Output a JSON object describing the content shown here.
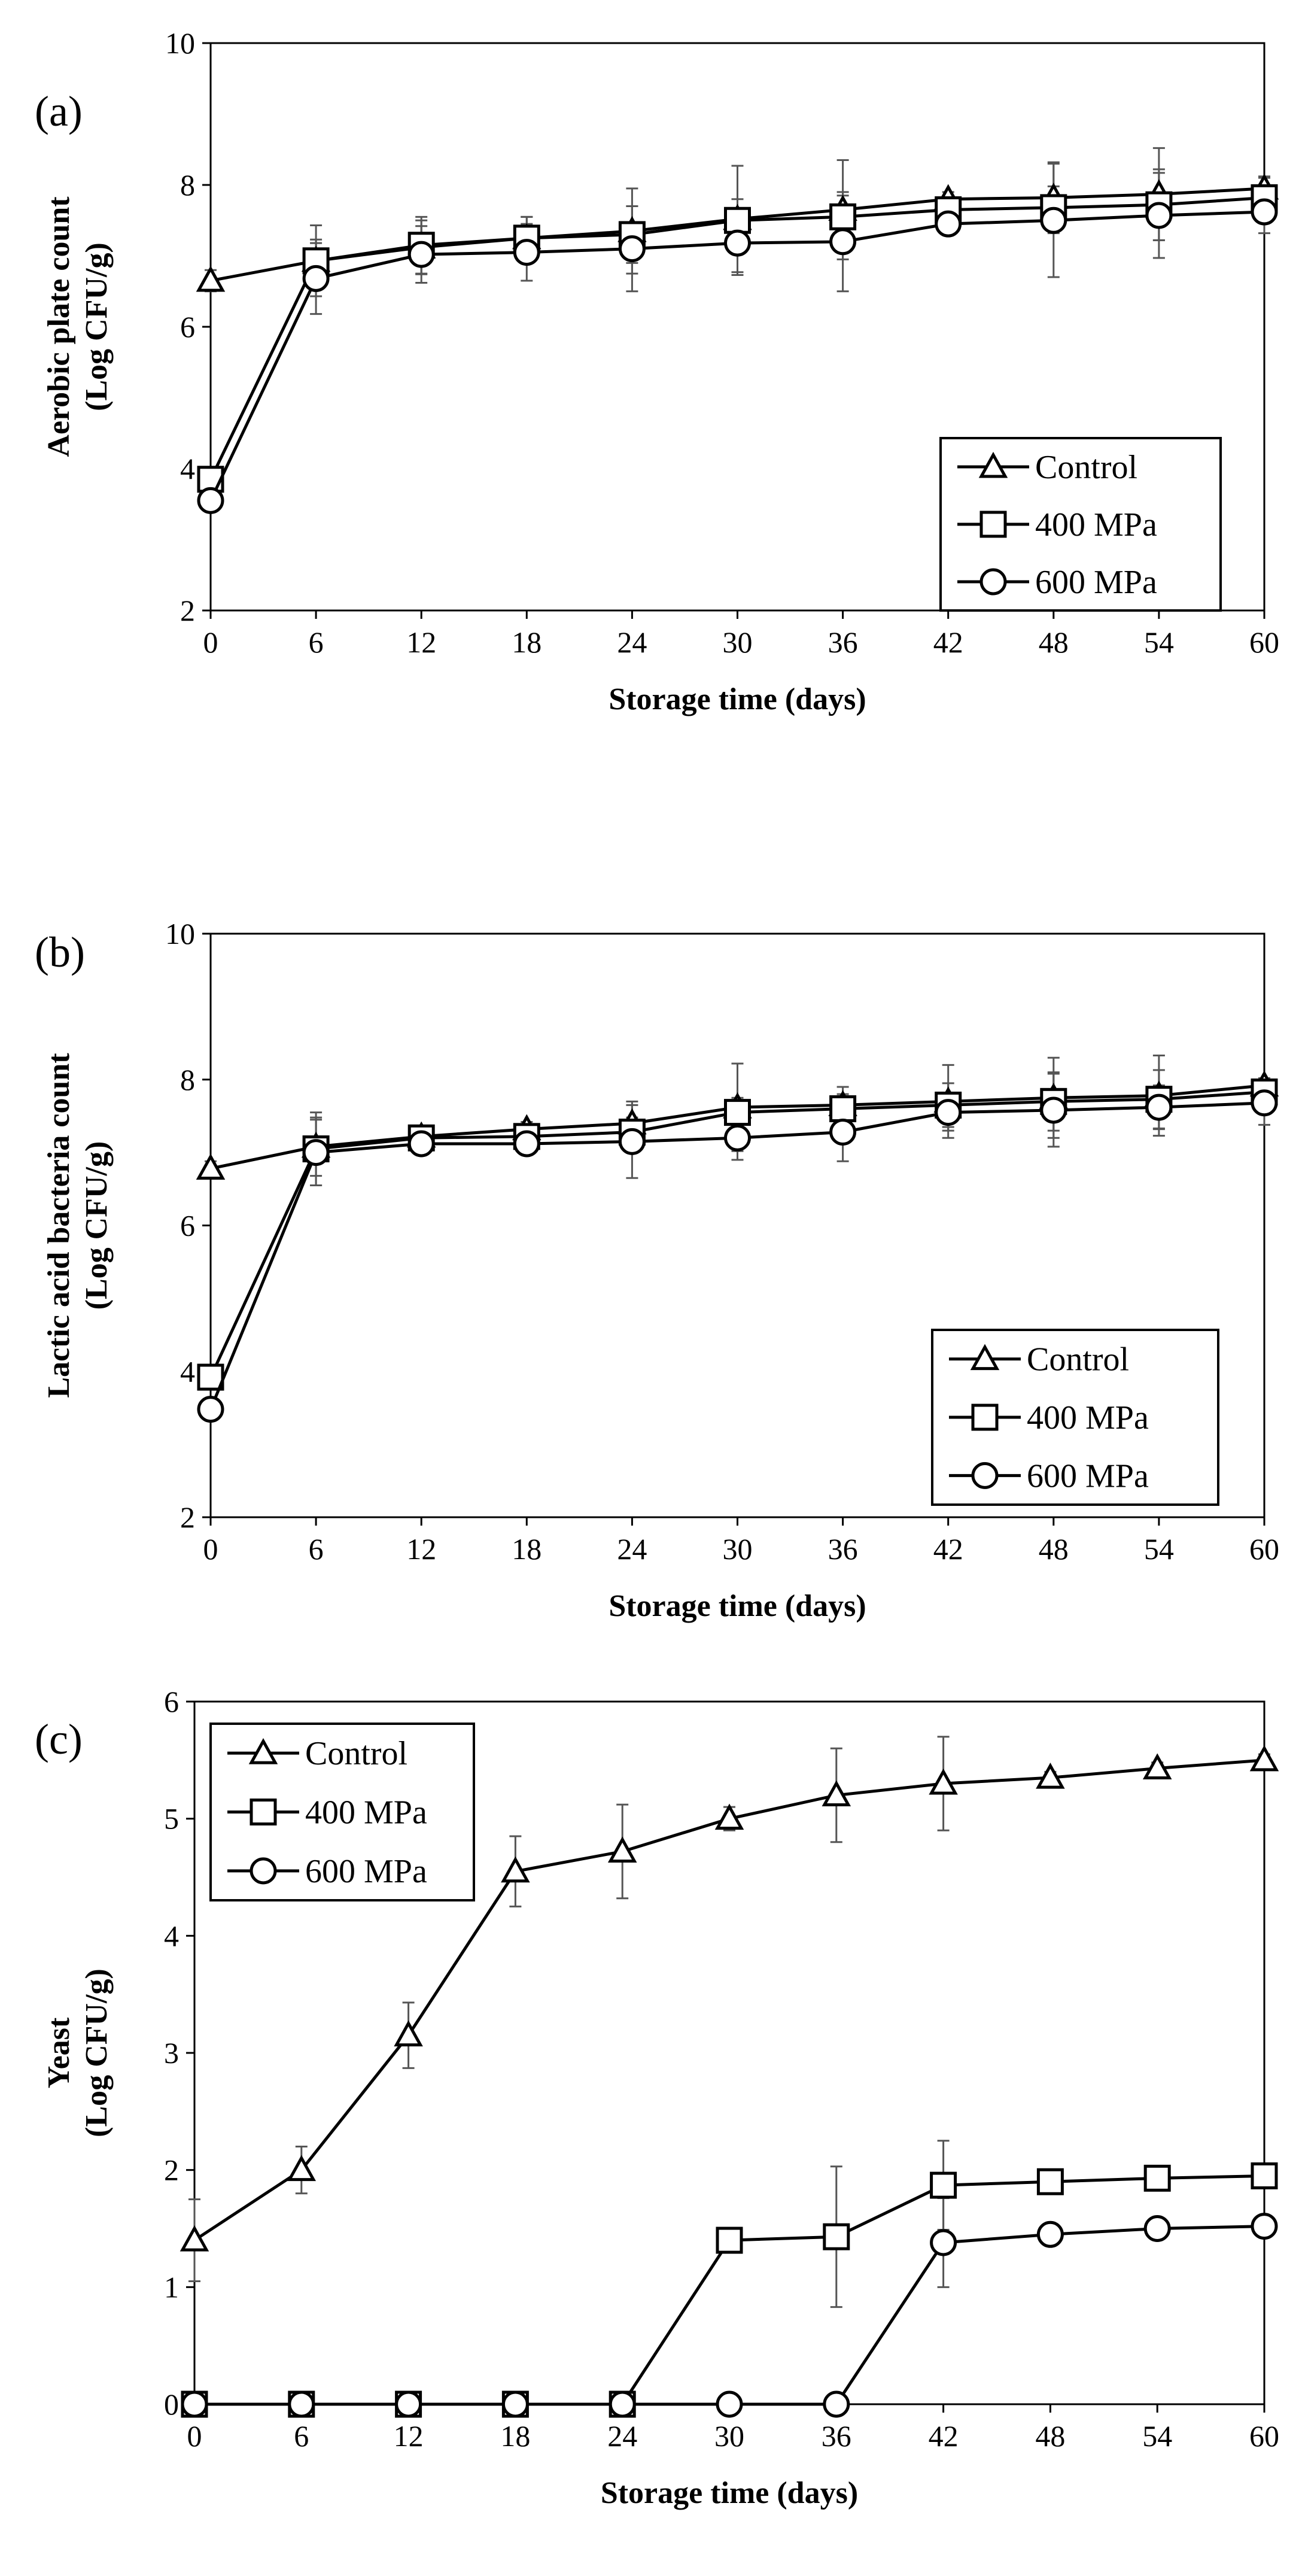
{
  "chart_data": [
    {
      "type": "line",
      "panel_label": "(a)",
      "xlabel": "Storage time (days)",
      "ylabel": "Aerobic plate count",
      "ylabel2": "(Log CFU/g)",
      "xlim": [
        0,
        60
      ],
      "ylim": [
        2,
        10
      ],
      "x_ticks": [
        "0",
        "6",
        "12",
        "18",
        "24",
        "30",
        "36",
        "42",
        "48",
        "54",
        "60"
      ],
      "y_ticks": [
        "2",
        "4",
        "6",
        "8",
        "10"
      ],
      "grid": false,
      "legend_position": "bottom-right",
      "x": [
        0,
        6,
        12,
        18,
        24,
        30,
        36,
        42,
        48,
        54,
        60
      ],
      "series": [
        {
          "name": "Control",
          "marker": "triangle",
          "values": [
            6.65,
            6.93,
            7.12,
            7.25,
            7.35,
            7.52,
            7.65,
            7.8,
            7.82,
            7.87,
            7.95
          ],
          "errors": [
            0.15,
            0.3,
            0.38,
            0.3,
            0.6,
            0.75,
            0.7,
            0.1,
            0.5,
            0.65,
            0.15
          ]
        },
        {
          "name": "400 MPa",
          "marker": "square",
          "values": [
            3.85,
            6.93,
            7.15,
            7.25,
            7.3,
            7.5,
            7.55,
            7.65,
            7.68,
            7.72,
            7.82
          ],
          "errors": [
            0.1,
            0.5,
            0.4,
            0.3,
            0.4,
            0.3,
            0.3,
            0.15,
            0.3,
            0.5,
            0.3
          ]
        },
        {
          "name": "600 MPa",
          "marker": "circle",
          "values": [
            3.55,
            6.68,
            7.02,
            7.05,
            7.1,
            7.18,
            7.2,
            7.45,
            7.5,
            7.57,
            7.62
          ],
          "errors": [
            0.1,
            0.5,
            0.4,
            0.4,
            0.6,
            0.45,
            0.7,
            0.1,
            0.8,
            0.6,
            0.3
          ]
        }
      ]
    },
    {
      "type": "line",
      "panel_label": "(b)",
      "xlabel": "Storage time (days)",
      "ylabel": "Lactic acid bacteria count",
      "ylabel2": "(Log CFU/g)",
      "xlim": [
        0,
        60
      ],
      "ylim": [
        2,
        10
      ],
      "x_ticks": [
        "0",
        "6",
        "12",
        "18",
        "24",
        "30",
        "36",
        "42",
        "48",
        "54",
        "60"
      ],
      "y_ticks": [
        "2",
        "4",
        "6",
        "8",
        "10"
      ],
      "grid": false,
      "legend_position": "bottom-right",
      "x": [
        0,
        6,
        12,
        18,
        24,
        30,
        36,
        42,
        48,
        54,
        60
      ],
      "series": [
        {
          "name": "Control",
          "marker": "triangle",
          "values": [
            6.78,
            7.08,
            7.22,
            7.32,
            7.4,
            7.62,
            7.65,
            7.7,
            7.75,
            7.78,
            7.92
          ],
          "errors": [
            0.1,
            0.4,
            0.1,
            0.1,
            0.3,
            0.6,
            0.25,
            0.5,
            0.55,
            0.55,
            0.1
          ]
        },
        {
          "name": "400 MPa",
          "marker": "square",
          "values": [
            3.92,
            7.05,
            7.2,
            7.22,
            7.28,
            7.55,
            7.6,
            7.65,
            7.7,
            7.73,
            7.83
          ],
          "errors": [
            0.1,
            0.5,
            0.1,
            0.15,
            0.2,
            0.2,
            0.2,
            0.3,
            0.4,
            0.4,
            0.1
          ]
        },
        {
          "name": "600 MPa",
          "marker": "circle",
          "values": [
            3.48,
            7.0,
            7.12,
            7.12,
            7.15,
            7.2,
            7.28,
            7.55,
            7.58,
            7.62,
            7.68
          ],
          "errors": [
            0.15,
            0.45,
            0.1,
            0.1,
            0.5,
            0.3,
            0.4,
            0.25,
            0.5,
            0.3,
            0.3
          ]
        }
      ]
    },
    {
      "type": "line",
      "panel_label": "(c)",
      "xlabel": "Storage time (days)",
      "ylabel": "Yeast",
      "ylabel2": "(Log CFU/g)",
      "xlim": [
        0,
        60
      ],
      "ylim": [
        0,
        6
      ],
      "x_ticks": [
        "0",
        "6",
        "12",
        "18",
        "24",
        "30",
        "36",
        "42",
        "48",
        "54",
        "60"
      ],
      "y_ticks": [
        "0",
        "1",
        "2",
        "3",
        "4",
        "5",
        "6"
      ],
      "grid": false,
      "legend_position": "top-left",
      "x": [
        0,
        6,
        12,
        18,
        24,
        30,
        36,
        42,
        48,
        54,
        60
      ],
      "series": [
        {
          "name": "Control",
          "marker": "triangle",
          "values": [
            1.4,
            2.0,
            3.15,
            4.55,
            4.72,
            5.0,
            5.2,
            5.3,
            5.35,
            5.43,
            5.5
          ],
          "errors": [
            0.35,
            0.2,
            0.28,
            0.3,
            0.4,
            0.1,
            0.4,
            0.4,
            0.05,
            0.05,
            0.05
          ]
        },
        {
          "name": "400 MPa",
          "marker": "square",
          "values": [
            0,
            0,
            0,
            0,
            0,
            1.4,
            1.43,
            1.87,
            1.9,
            1.93,
            1.95
          ],
          "errors": [
            0,
            0,
            0,
            0,
            0,
            0,
            0.6,
            0.38,
            0.05,
            0.05,
            0.05
          ]
        },
        {
          "name": "600 MPa",
          "marker": "circle",
          "values": [
            0,
            0,
            0,
            0,
            0,
            0,
            0,
            1.38,
            1.45,
            1.5,
            1.52
          ],
          "errors": [
            0,
            0,
            0,
            0,
            0,
            0,
            0,
            0.38,
            0.05,
            0.05,
            0.05
          ]
        }
      ]
    }
  ]
}
